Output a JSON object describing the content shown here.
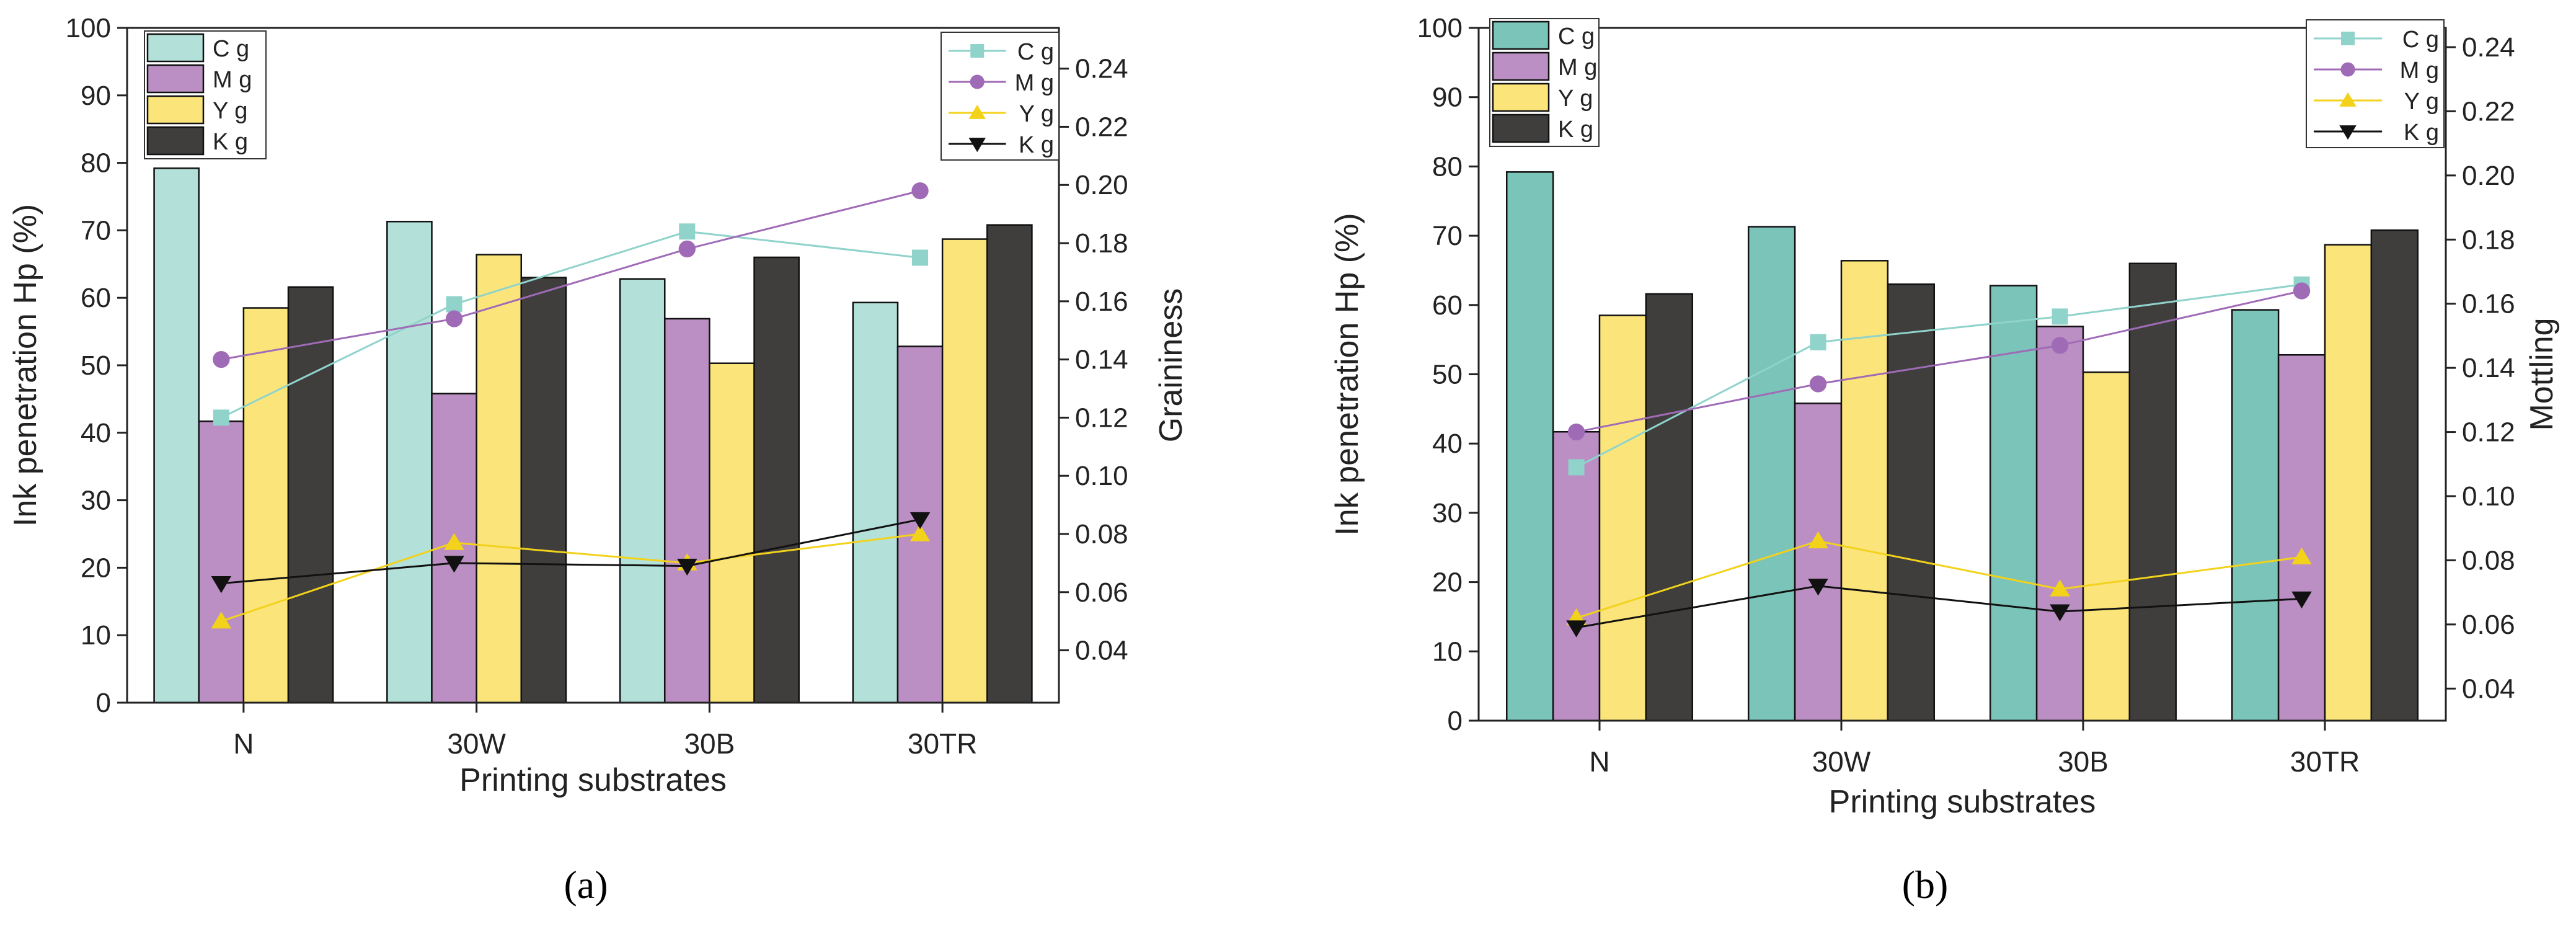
{
  "chart_data": [
    {
      "type": "bar+line",
      "panel": "a",
      "caption": "(a)",
      "xlabel": "Printing substrates",
      "ylabel_left": "Ink penetration Hp (%)",
      "ylabel_right": "Graininess",
      "categories": [
        "N",
        "30W",
        "30B",
        "30TR"
      ],
      "ylim_left": [
        0,
        100
      ],
      "yticks_left": [
        "0",
        "10",
        "20",
        "30",
        "40",
        "50",
        "60",
        "70",
        "80",
        "90",
        "100"
      ],
      "ylim_right": [
        0.022,
        0.254
      ],
      "yticks_right": [
        "0.04",
        "0.06",
        "0.08",
        "0.10",
        "0.12",
        "0.14",
        "0.16",
        "0.18",
        "0.20",
        "0.22",
        "0.24"
      ],
      "bar_series": [
        {
          "name": "C g",
          "values": [
            79.2,
            71.3,
            62.8,
            59.3
          ],
          "color": "#b3e0d8"
        },
        {
          "name": "M g",
          "values": [
            41.7,
            45.8,
            56.9,
            52.8
          ],
          "color": "#bb8fc4"
        },
        {
          "name": "Y g",
          "values": [
            58.5,
            66.4,
            50.3,
            68.7
          ],
          "color": "#fbe47a"
        },
        {
          "name": "K g",
          "values": [
            61.6,
            63.0,
            66.0,
            70.8
          ],
          "color": "#3f3e3d"
        }
      ],
      "line_series": [
        {
          "name": "C g",
          "values": [
            0.12,
            0.159,
            0.184,
            0.175
          ],
          "color": "#8fd3cb",
          "marker": "square"
        },
        {
          "name": "M g",
          "values": [
            0.14,
            0.154,
            0.178,
            0.198
          ],
          "color": "#a06bb6",
          "marker": "circle"
        },
        {
          "name": "Y g",
          "values": [
            0.05,
            0.077,
            0.07,
            0.08
          ],
          "color": "#f2d21b",
          "marker": "triangle-up"
        },
        {
          "name": "K g",
          "values": [
            0.063,
            0.07,
            0.069,
            0.085
          ],
          "color": "#111111",
          "marker": "triangle-down"
        }
      ]
    },
    {
      "type": "bar+line",
      "panel": "b",
      "caption": "(b)",
      "xlabel": "Printing substrates",
      "ylabel_left": "Ink penetration Hp (%)",
      "ylabel_right": "Mottling",
      "categories": [
        "N",
        "30W",
        "30B",
        "30TR"
      ],
      "ylim_left": [
        0,
        100
      ],
      "yticks_left": [
        "0",
        "10",
        "20",
        "30",
        "40",
        "50",
        "60",
        "70",
        "80",
        "90",
        "100"
      ],
      "ylim_right": [
        0.03,
        0.246
      ],
      "yticks_right": [
        "0.04",
        "0.06",
        "0.08",
        "0.10",
        "0.12",
        "0.14",
        "0.16",
        "0.18",
        "0.20",
        "0.22",
        "0.24"
      ],
      "bar_series": [
        {
          "name": "C g",
          "values": [
            79.2,
            71.3,
            62.8,
            59.3
          ],
          "color": "#7ac4ba"
        },
        {
          "name": "M g",
          "values": [
            41.7,
            45.8,
            56.9,
            52.8
          ],
          "color": "#bb8fc4"
        },
        {
          "name": "Y g",
          "values": [
            58.5,
            66.4,
            50.3,
            68.7
          ],
          "color": "#fbe47a"
        },
        {
          "name": "K g",
          "values": [
            61.6,
            63.0,
            66.0,
            70.8
          ],
          "color": "#3f3e3d"
        }
      ],
      "line_series": [
        {
          "name": "C g",
          "values": [
            0.109,
            0.148,
            0.156,
            0.166
          ],
          "color": "#8fd3cb",
          "marker": "square"
        },
        {
          "name": "M g",
          "values": [
            0.12,
            0.135,
            0.147,
            0.164
          ],
          "color": "#a06bb6",
          "marker": "circle"
        },
        {
          "name": "Y g",
          "values": [
            0.062,
            0.086,
            0.071,
            0.081
          ],
          "color": "#f2d21b",
          "marker": "triangle-up"
        },
        {
          "name": "K g",
          "values": [
            0.059,
            0.072,
            0.064,
            0.068
          ],
          "color": "#111111",
          "marker": "triangle-down"
        }
      ]
    }
  ]
}
